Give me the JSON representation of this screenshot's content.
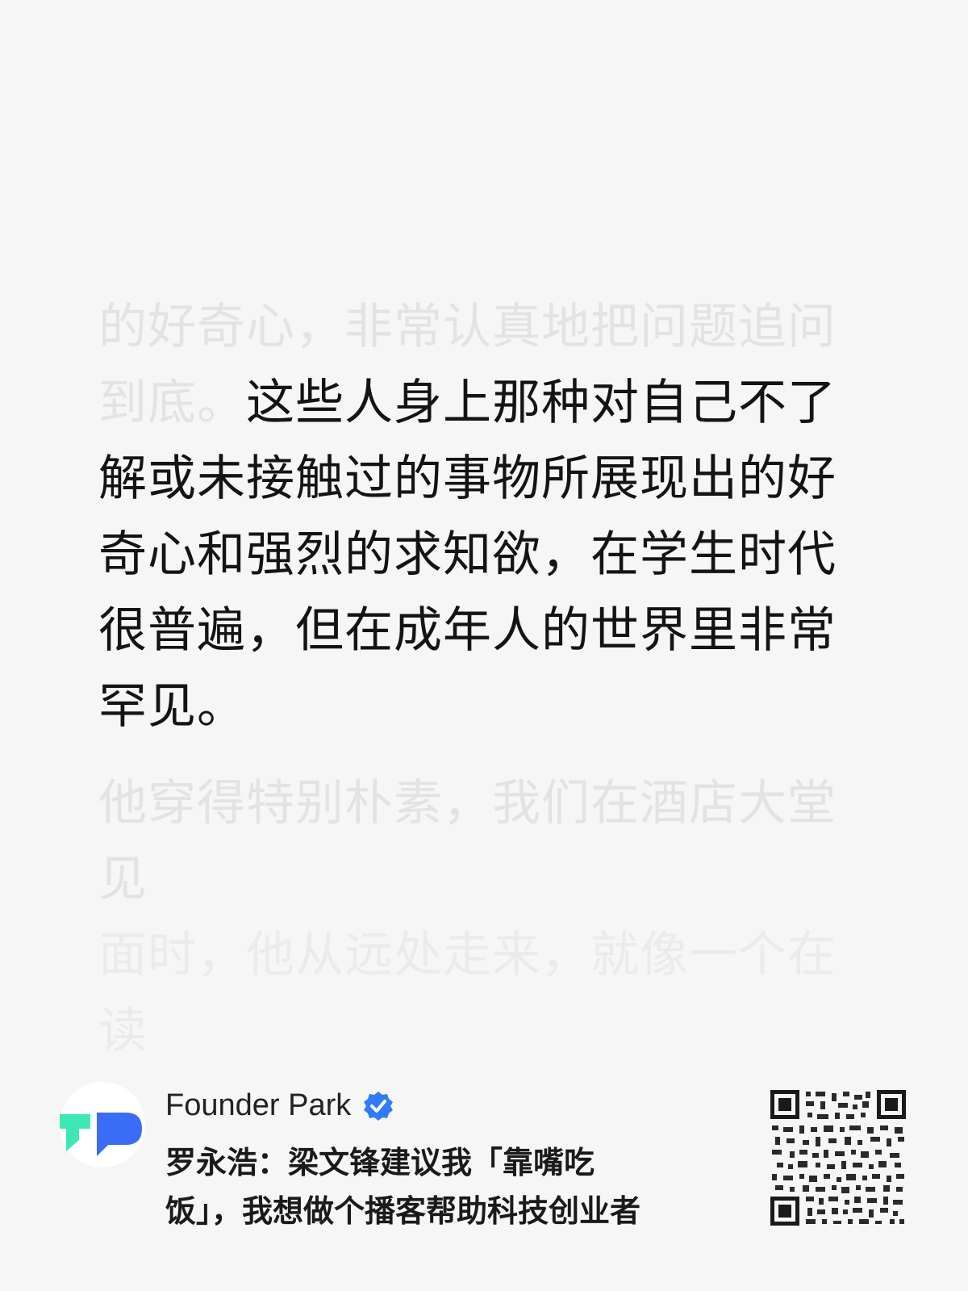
{
  "quote": {
    "faded_before": "的好奇心，非常认真地把问题追问到底。",
    "highlight": "这些人身上那种对自己不了解或未接触过的事物所展现出的好奇心和强烈的求知欲，在学生时代很普遍，但在成年人的世界里非常罕见。",
    "faded_after_line1": "他穿得特别朴素，我们在酒店大堂见",
    "faded_after_line2": "面时，他从远处走来，就像一个在读"
  },
  "footer": {
    "account_name": "Founder Park",
    "verified_icon": "verified-badge-icon",
    "headline_line1": "罗永浩：梁文锋建议我「靠嘴吃",
    "headline_line2": "饭」，我想做个播客帮助科技创业者",
    "colors": {
      "logo_green": "#3ee8b5",
      "logo_blue": "#3b6cf6",
      "verified_blue": "#2f7cf6"
    }
  }
}
